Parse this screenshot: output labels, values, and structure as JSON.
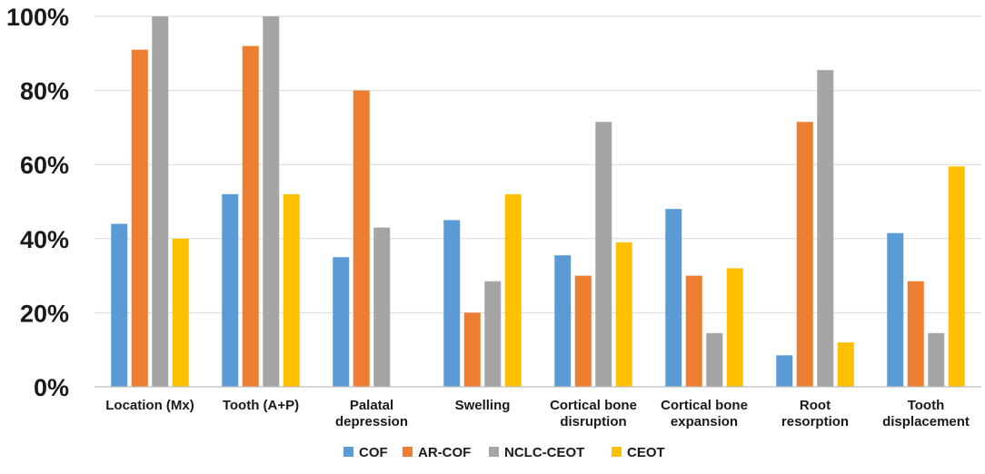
{
  "chart_data": {
    "type": "bar",
    "title": "",
    "xlabel": "",
    "ylabel": "",
    "ylim": [
      0,
      100
    ],
    "yticks": [
      "0%",
      "20%",
      "40%",
      "60%",
      "80%",
      "100%"
    ],
    "grid": true,
    "legend_position": "bottom",
    "categories": [
      [
        "Location (Mx)"
      ],
      [
        "Tooth (A+P)"
      ],
      [
        "Palatal",
        "depression"
      ],
      [
        "Swelling"
      ],
      [
        "Cortical bone",
        "disruption"
      ],
      [
        "Cortical bone",
        "expansion"
      ],
      [
        "Root",
        "resorption"
      ],
      [
        "Tooth",
        "displacement"
      ]
    ],
    "series": [
      {
        "name": "COF",
        "color": "#5b9bd5",
        "values": [
          44,
          52,
          35,
          45,
          35.5,
          48,
          8.5,
          41.5
        ]
      },
      {
        "name": "AR-COF",
        "color": "#ed7d31",
        "values": [
          91,
          92,
          80,
          20,
          30,
          30,
          71.5,
          28.5
        ]
      },
      {
        "name": "NCLC-CEOT",
        "color": "#a5a5a5",
        "values": [
          100,
          100,
          43,
          28.5,
          71.5,
          14.5,
          85.5,
          14.5
        ]
      },
      {
        "name": "CEOT",
        "color": "#ffc000",
        "values": [
          40,
          52,
          0,
          52,
          39,
          32,
          12,
          59.5
        ]
      }
    ]
  }
}
